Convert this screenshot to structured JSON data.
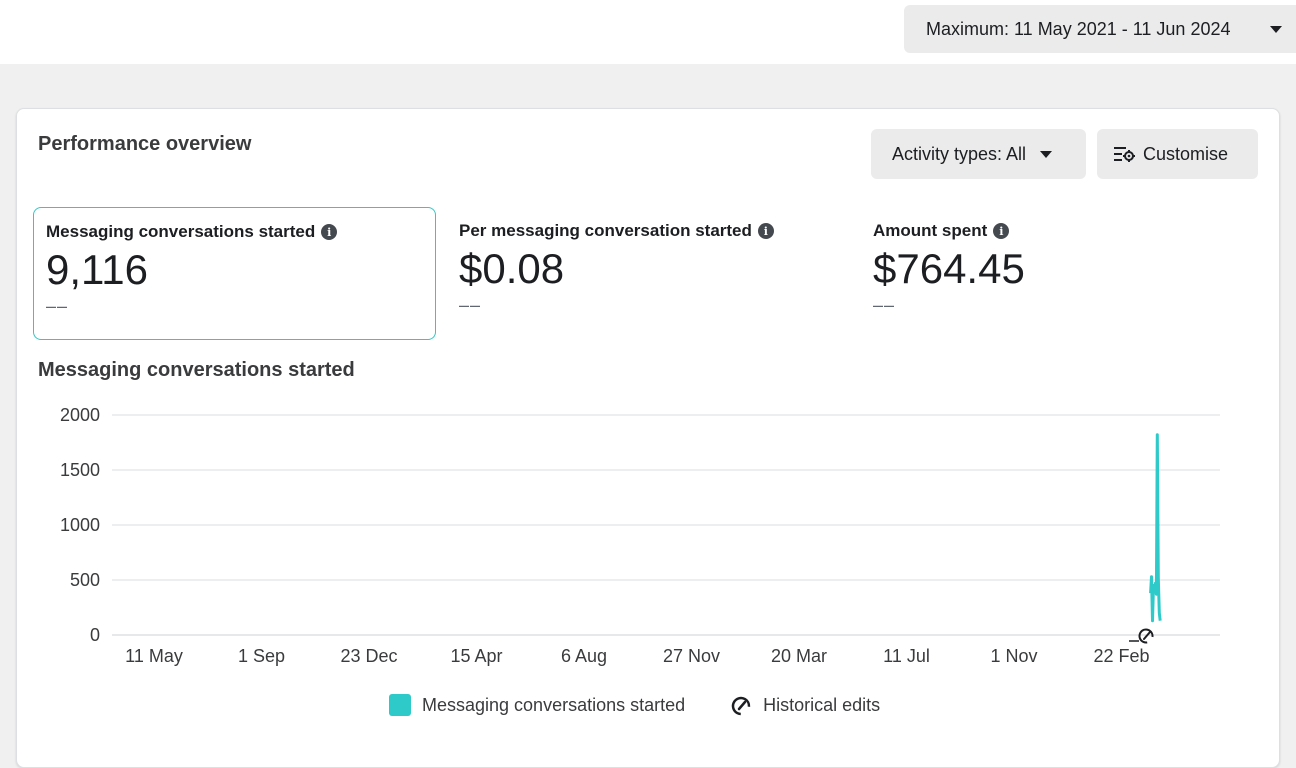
{
  "header": {
    "date_range_label": "Maximum: 11 May 2021 - 11 Jun 2024"
  },
  "card": {
    "title": "Performance overview",
    "activity_types_label": "Activity types: All",
    "customise_label": "Customise"
  },
  "metrics": [
    {
      "label": "Messaging conversations started",
      "value": "9,116",
      "compare": "––"
    },
    {
      "label": "Per messaging conversation started",
      "value": "$0.08",
      "compare": "––"
    },
    {
      "label": "Amount spent",
      "value": "$764.45",
      "compare": "––"
    }
  ],
  "chart": {
    "title": "Messaging conversations started"
  },
  "chart_data": {
    "type": "line",
    "ylim": [
      0,
      2000
    ],
    "yticks": [
      0,
      500,
      1000,
      1500,
      2000
    ],
    "xticks": [
      "11 May",
      "1 Sep",
      "23 Dec",
      "15 Apr",
      "6 Aug",
      "27 Nov",
      "20 Mar",
      "11 Jul",
      "1 Nov",
      "22 Feb"
    ],
    "series": [
      {
        "name": "Messaging conversations started",
        "color": "#2ec9c9",
        "points": [
          {
            "x": "2024-03-05",
            "y": 380
          },
          {
            "x": "2024-03-06",
            "y": 530
          },
          {
            "x": "2024-03-07",
            "y": 130
          },
          {
            "x": "2024-03-08",
            "y": 450
          },
          {
            "x": "2024-03-09",
            "y": 390
          },
          {
            "x": "2024-03-10",
            "y": 470
          },
          {
            "x": "2024-03-11",
            "y": 370
          },
          {
            "x": "2024-03-12",
            "y": 1820
          },
          {
            "x": "2024-03-13",
            "y": 520
          },
          {
            "x": "2024-03-14",
            "y": 200
          },
          {
            "x": "2024-03-15",
            "y": 130
          }
        ]
      }
    ],
    "grid": true,
    "legend": "bottom",
    "legend_entries": [
      "Messaging conversations started",
      "Historical edits"
    ]
  }
}
